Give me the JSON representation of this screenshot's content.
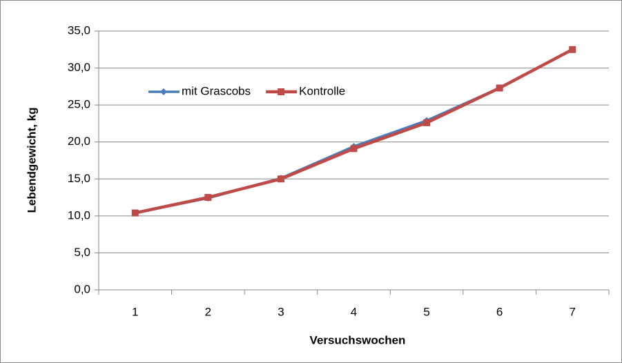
{
  "chart_data": {
    "type": "line",
    "x_label": "Versuchswochen",
    "y_label": "Lebendgewicht, kg",
    "categories": [
      "1",
      "2",
      "3",
      "4",
      "5",
      "6",
      "7"
    ],
    "series": [
      {
        "name": "mit Grascobs",
        "color": "#4a7ebb",
        "marker": "diamond",
        "values": [
          10.4,
          12.4,
          15.1,
          19.4,
          22.9,
          27.3,
          32.5
        ]
      },
      {
        "name": "Kontrolle",
        "color": "#be4b48",
        "marker": "square",
        "values": [
          10.4,
          12.5,
          15.0,
          19.1,
          22.6,
          27.3,
          32.5
        ]
      }
    ],
    "ylim": [
      0,
      35
    ],
    "yticks": [
      {
        "value": 0,
        "label": "0,0"
      },
      {
        "value": 5,
        "label": "5,0"
      },
      {
        "value": 10,
        "label": "10,0"
      },
      {
        "value": 15,
        "label": "15,0"
      },
      {
        "value": 20,
        "label": "20,0"
      },
      {
        "value": 25,
        "label": "25,0"
      },
      {
        "value": 30,
        "label": "30,0"
      },
      {
        "value": 35,
        "label": "35,0"
      }
    ],
    "grid": true,
    "legend": "top-left"
  }
}
